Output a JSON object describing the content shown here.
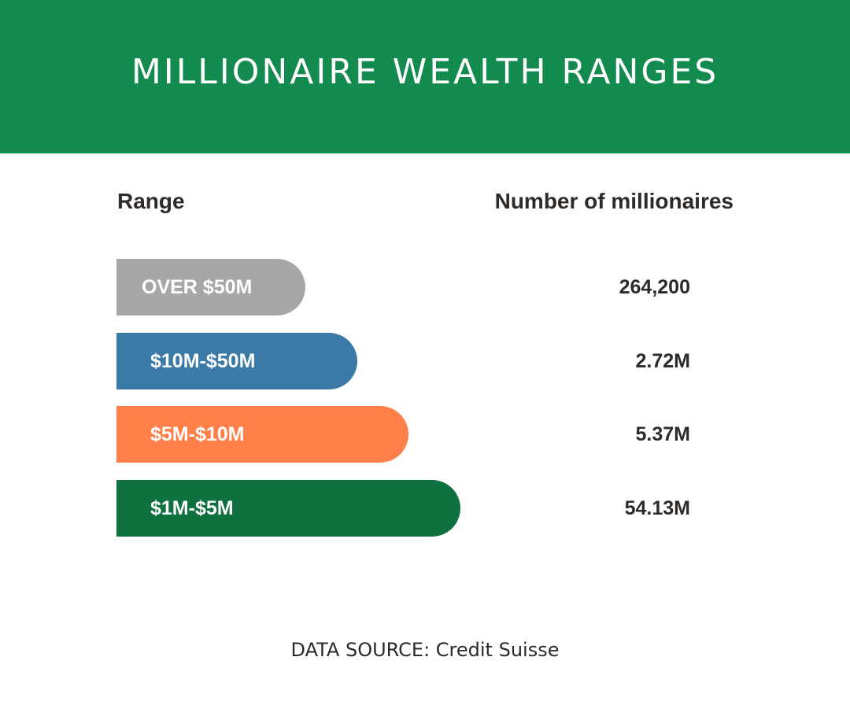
{
  "header": {
    "title": "MILLIONAIRE WEALTH RANGES",
    "color": "#138a4e"
  },
  "chart_data": {
    "type": "bar",
    "orientation": "horizontal",
    "title": "MILLIONAIRE WEALTH RANGES",
    "column_headers": {
      "range": "Range",
      "count": "Number of millionaires"
    },
    "rows": [
      {
        "label": "OVER $50M",
        "value_text": "264,200",
        "value": 264200,
        "color": "#a7a7a7"
      },
      {
        "label": "$10M-$50M",
        "value_text": "2.72M",
        "value": 2720000,
        "color": "#3b7aa6"
      },
      {
        "label": "$5M-$10M",
        "value_text": "5.37M",
        "value": 5370000,
        "color": "#ff8049"
      },
      {
        "label": "$1M-$5M",
        "value_text": "54.13M",
        "value": 54130000,
        "color": "#0f7040"
      }
    ],
    "source": "DATA SOURCE: Credit Suisse"
  }
}
